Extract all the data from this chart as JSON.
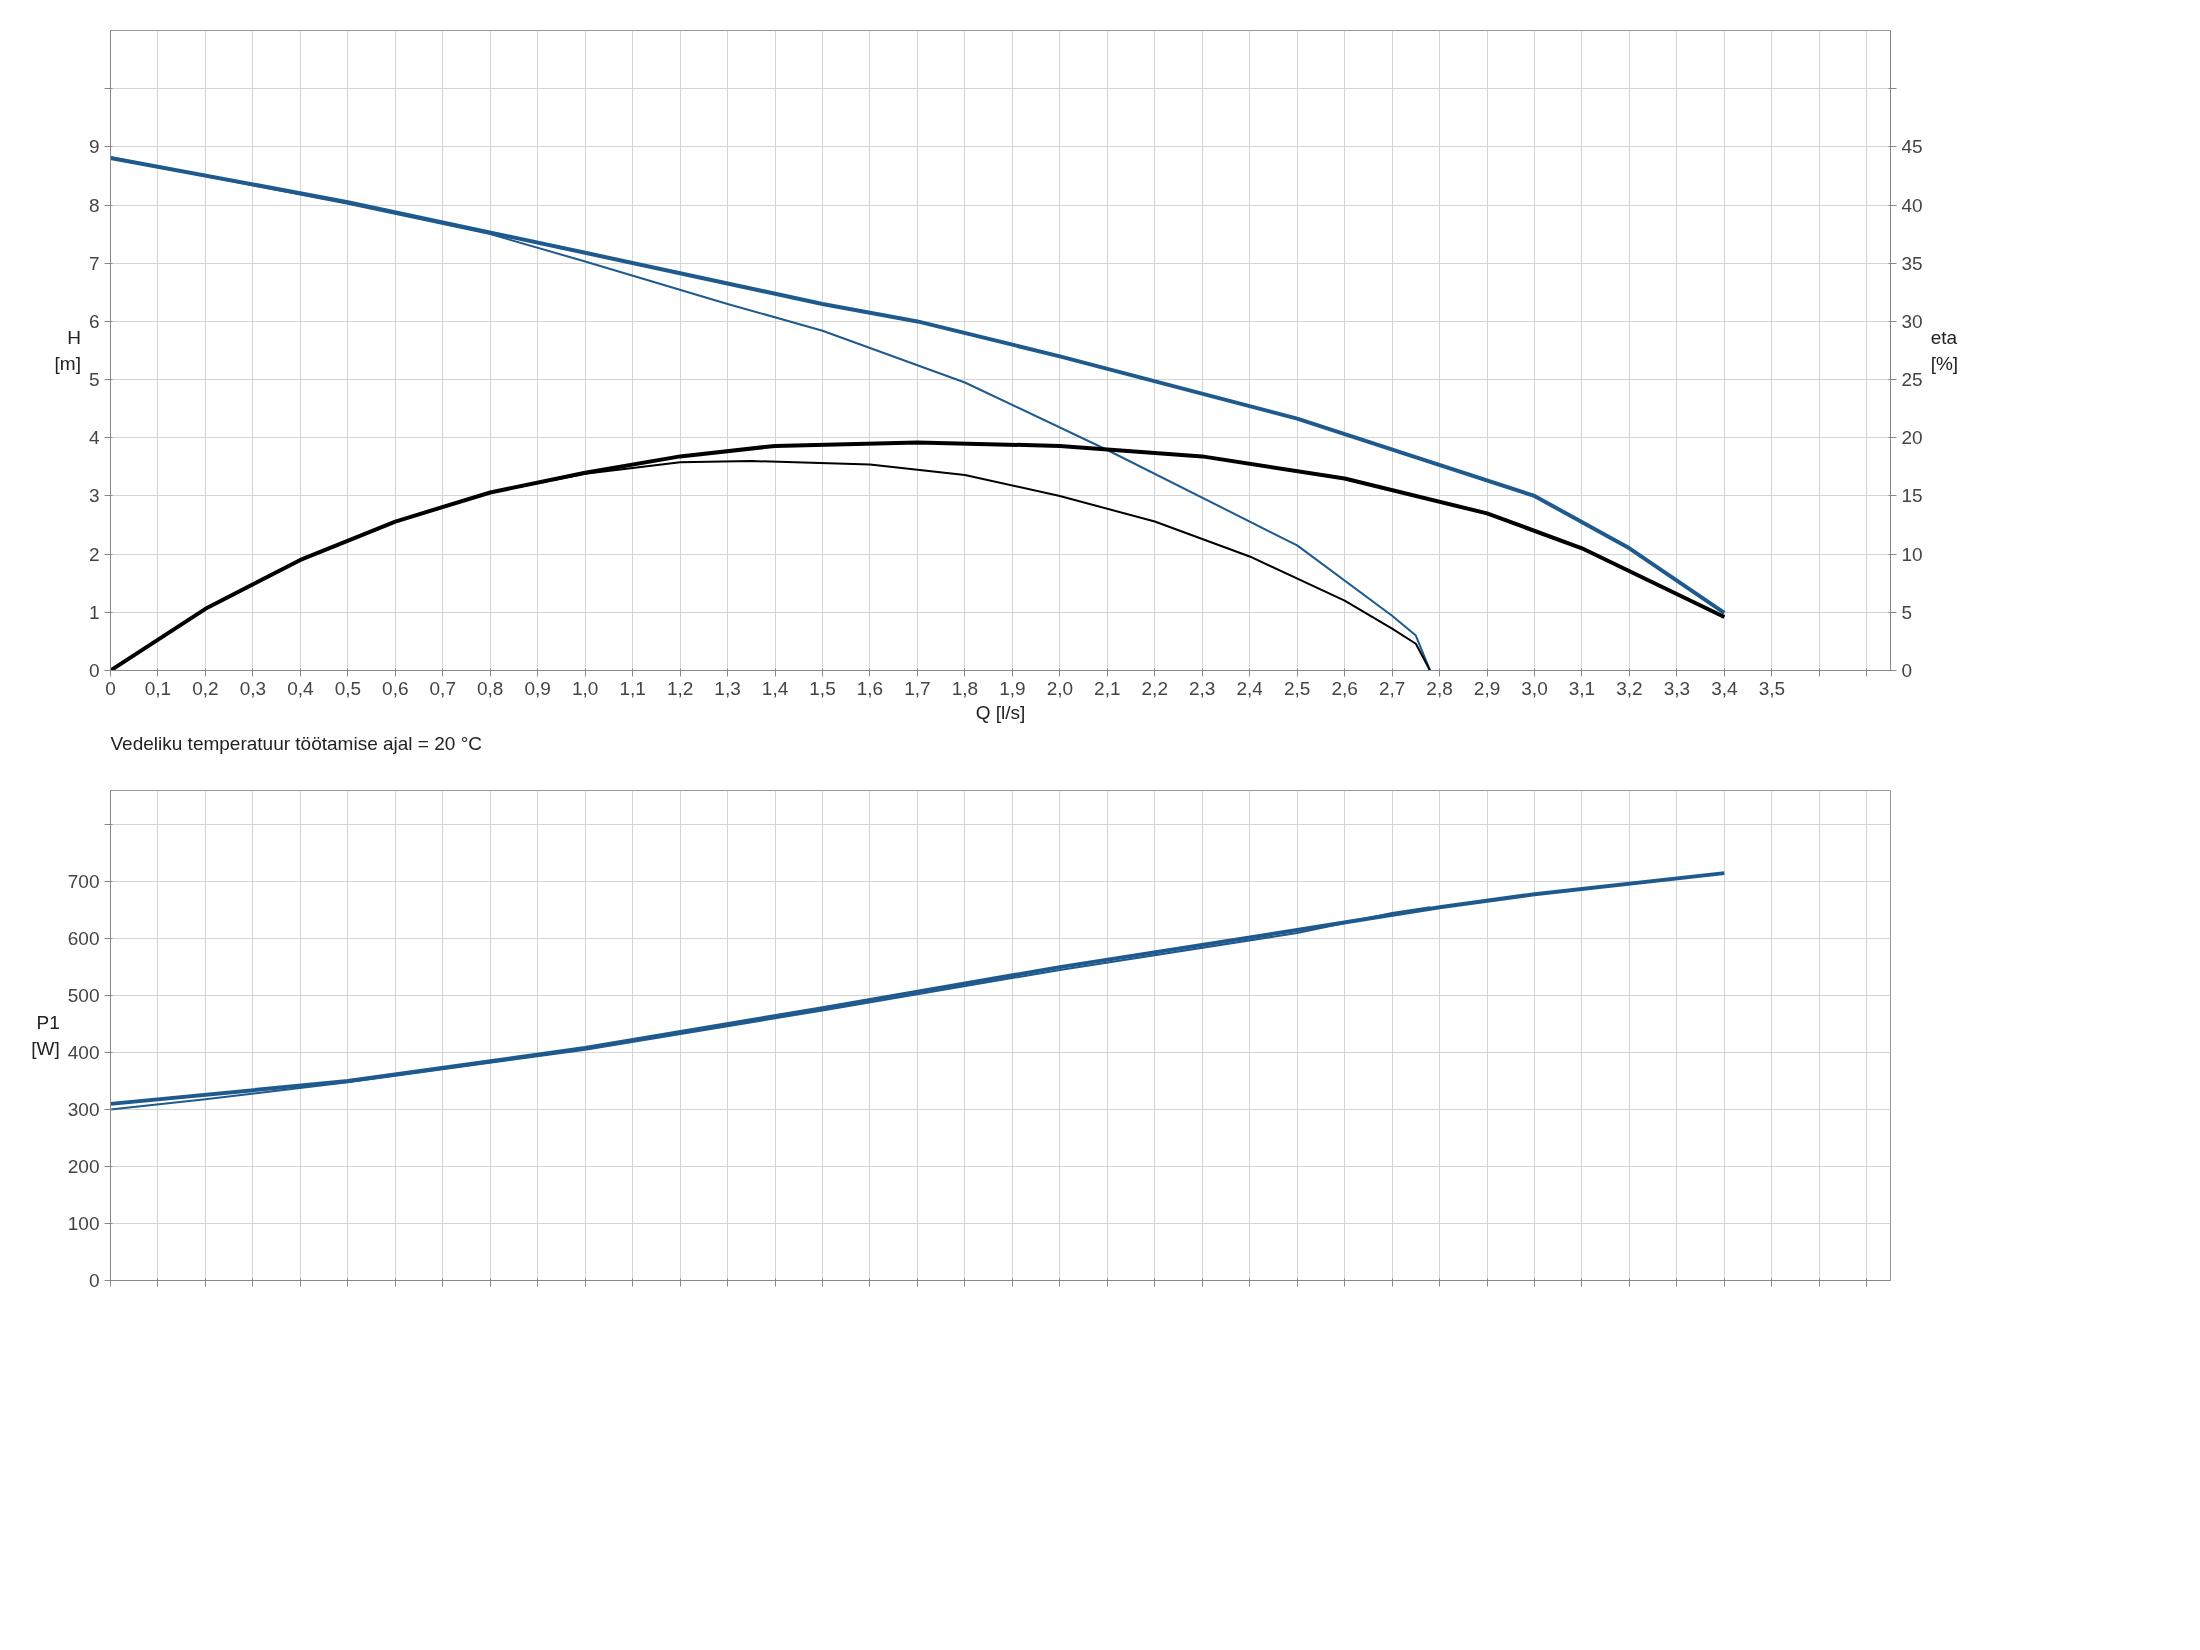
{
  "chart_data": [
    {
      "type": "line",
      "xlabel": "Q [l/s]",
      "ylabel": "H\n[m]",
      "y2label": "eta\n[%]",
      "grid": true,
      "annotations": [
        "Vedeliku temperatuur töötamise ajal = 20 °C"
      ],
      "xlim": [
        0,
        3.75
      ],
      "ylim": [
        0,
        11
      ],
      "y2lim": [
        0,
        55
      ],
      "xticks": [
        0,
        {
          "value": 0.1,
          "label": "0,1"
        },
        {
          "value": 0.2,
          "label": "0,2"
        },
        {
          "value": 0.3,
          "label": "0,3"
        },
        {
          "value": 0.4,
          "label": "0,4"
        },
        {
          "value": 0.5,
          "label": "0,5"
        },
        {
          "value": 0.6,
          "label": "0,6"
        },
        {
          "value": 0.7,
          "label": "0,7"
        },
        {
          "value": 0.8,
          "label": "0,8"
        },
        {
          "value": 0.9,
          "label": "0,9"
        },
        {
          "value": 1.0,
          "label": "1,0"
        },
        {
          "value": 1.1,
          "label": "1,1"
        },
        {
          "value": 1.2,
          "label": "1,2"
        },
        {
          "value": 1.3,
          "label": "1,3"
        },
        {
          "value": 1.4,
          "label": "1,4"
        },
        {
          "value": 1.5,
          "label": "1,5"
        },
        {
          "value": 1.6,
          "label": "1,6"
        },
        {
          "value": 1.7,
          "label": "1,7"
        },
        {
          "value": 1.8,
          "label": "1,8"
        },
        {
          "value": 1.9,
          "label": "1,9"
        },
        {
          "value": 2.0,
          "label": "2,0"
        },
        {
          "value": 2.1,
          "label": "2,1"
        },
        {
          "value": 2.2,
          "label": "2,2"
        },
        {
          "value": 2.3,
          "label": "2,3"
        },
        {
          "value": 2.4,
          "label": "2,4"
        },
        {
          "value": 2.5,
          "label": "2,5"
        },
        {
          "value": 2.6,
          "label": "2,6"
        },
        {
          "value": 2.7,
          "label": "2,7"
        },
        {
          "value": 2.8,
          "label": "2,8"
        },
        {
          "value": 2.9,
          "label": "2,9"
        },
        {
          "value": 3.0,
          "label": "3,0"
        },
        {
          "value": 3.1,
          "label": "3,1"
        },
        {
          "value": 3.2,
          "label": "3,2"
        },
        {
          "value": 3.3,
          "label": "3,3"
        },
        {
          "value": 3.4,
          "label": "3,4"
        },
        {
          "value": 3.5,
          "label": "3,5"
        },
        {
          "value": 3.6,
          "label": null
        },
        {
          "value": 3.7,
          "label": null
        }
      ],
      "yticks": [
        0,
        1,
        2,
        3,
        4,
        5,
        6,
        7,
        8,
        9,
        {
          "value": 10,
          "label": null
        }
      ],
      "y2ticks": [
        0,
        5,
        10,
        15,
        20,
        25,
        30,
        35,
        40,
        45,
        {
          "value": 50,
          "label": null
        }
      ],
      "series": [
        {
          "color": "#1f5a8f",
          "x": [
            0,
            0.5,
            1.0,
            1.5,
            1.7,
            2.0,
            2.5,
            3.0,
            3.2,
            3.4
          ],
          "values": [
            8.81,
            8.05,
            7.18,
            6.3,
            6.0,
            5.4,
            4.33,
            3.0,
            2.1,
            0.99
          ]
        },
        {
          "color": "#1f5a8f",
          "x": [
            0,
            0.5,
            0.8,
            1.0,
            1.3,
            1.5,
            1.8,
            2.1,
            2.5,
            2.7,
            2.75,
            2.78
          ],
          "values": [
            8.82,
            8.02,
            7.5,
            7.03,
            6.3,
            5.84,
            4.95,
            3.79,
            2.15,
            0.94,
            0.6,
            0
          ]
        },
        {
          "color": "#000000",
          "axis": "y2",
          "x": [
            0,
            0.2,
            0.4,
            0.6,
            0.8,
            1.0,
            1.2,
            1.4,
            1.7,
            2.0,
            2.3,
            2.6,
            2.9,
            3.1,
            3.4
          ],
          "values": [
            0,
            5.3,
            9.5,
            12.8,
            15.3,
            17,
            18.4,
            19.3,
            19.6,
            19.3,
            18.4,
            16.5,
            13.5,
            10.5,
            4.6
          ]
        },
        {
          "color": "#000000",
          "axis": "y2",
          "x": [
            0,
            0.2,
            0.4,
            0.6,
            0.8,
            1.0,
            1.2,
            1.35,
            1.6,
            1.8,
            2.0,
            2.2,
            2.4,
            2.6,
            2.7,
            2.75,
            2.78
          ],
          "values": [
            0,
            5.3,
            9.5,
            12.8,
            15.3,
            16.9,
            17.9,
            18,
            17.7,
            16.8,
            15,
            12.8,
            9.8,
            6,
            3.6,
            2.3,
            0
          ]
        }
      ]
    },
    {
      "type": "line",
      "ylabel": "P1\n[W]",
      "grid": true,
      "tick_labels": "y",
      "xlim": [
        0,
        3.75
      ],
      "ylim": [
        0,
        860
      ],
      "xticks": [
        {
          "value": 0,
          "label": null
        },
        {
          "value": 0.1,
          "label": null
        },
        {
          "value": 0.2,
          "label": null
        },
        {
          "value": 0.3,
          "label": null
        },
        {
          "value": 0.4,
          "label": null
        },
        {
          "value": 0.5,
          "label": null
        },
        {
          "value": 0.6,
          "label": null
        },
        {
          "value": 0.7,
          "label": null
        },
        {
          "value": 0.8,
          "label": null
        },
        {
          "value": 0.9,
          "label": null
        },
        {
          "value": 1.0,
          "label": null
        },
        {
          "value": 1.1,
          "label": null
        },
        {
          "value": 1.2,
          "label": null
        },
        {
          "value": 1.3,
          "label": null
        },
        {
          "value": 1.4,
          "label": null
        },
        {
          "value": 1.5,
          "label": null
        },
        {
          "value": 1.6,
          "label": null
        },
        {
          "value": 1.7,
          "label": null
        },
        {
          "value": 1.8,
          "label": null
        },
        {
          "value": 1.9,
          "label": null
        },
        {
          "value": 2.0,
          "label": null
        },
        {
          "value": 2.1,
          "label": null
        },
        {
          "value": 2.2,
          "label": null
        },
        {
          "value": 2.3,
          "label": null
        },
        {
          "value": 2.4,
          "label": null
        },
        {
          "value": 2.5,
          "label": null
        },
        {
          "value": 2.6,
          "label": null
        },
        {
          "value": 2.7,
          "label": null
        },
        {
          "value": 2.8,
          "label": null
        },
        {
          "value": 2.9,
          "label": null
        },
        {
          "value": 3.0,
          "label": null
        },
        {
          "value": 3.1,
          "label": null
        },
        {
          "value": 3.2,
          "label": null
        },
        {
          "value": 3.3,
          "label": null
        },
        {
          "value": 3.4,
          "label": null
        },
        {
          "value": 3.5,
          "label": null
        },
        {
          "value": 3.6,
          "label": null
        },
        {
          "value": 3.7,
          "label": null
        }
      ],
      "yticks": [
        0,
        100,
        200,
        300,
        400,
        500,
        600,
        700,
        {
          "value": 800,
          "label": null
        }
      ],
      "series": [
        {
          "color": "#1f5a8f",
          "x": [
            0,
            0.5,
            1.0,
            1.5,
            2.0,
            2.5,
            2.8,
            3.0,
            3.4
          ],
          "values": [
            310,
            350,
            408,
            478,
            550,
            615,
            655,
            678,
            715
          ]
        },
        {
          "color": "#1f5a8f",
          "x": [
            0,
            0.2,
            0.5,
            1.0,
            1.5,
            2.0,
            2.5,
            2.7,
            2.78
          ],
          "values": [
            300,
            318,
            348,
            405,
            474,
            545,
            610,
            645,
            655
          ]
        }
      ]
    }
  ]
}
